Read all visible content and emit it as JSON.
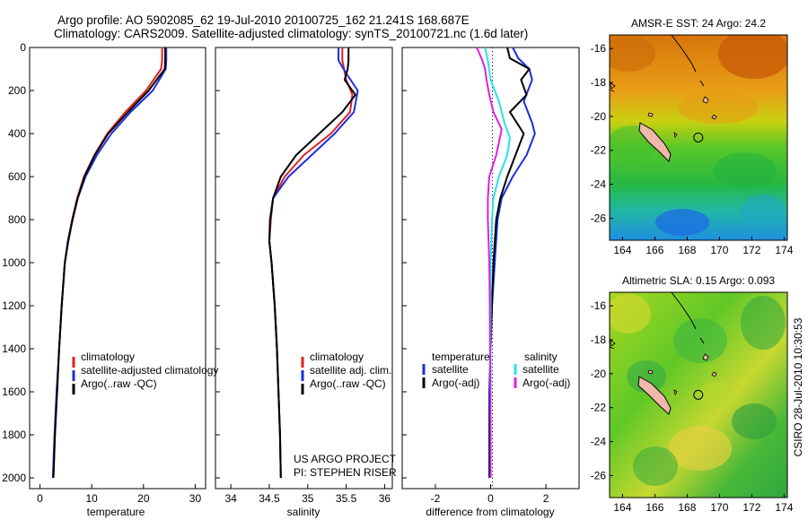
{
  "header": {
    "line1": "Argo profile: AO 5902085_62 19-Jul-2010 20100725_162 21.241S 168.687E",
    "line2": "Climatology: CARS2009. Satellite-adjusted climatology: synTS_20100721.nc (1.6d later)"
  },
  "side_label": "CSIRO 28-Jul-2010 10:30:53",
  "colors": {
    "red": "#e02020",
    "blue": "#1a2ee0",
    "black": "#000000",
    "cyan": "#28e2e8",
    "magenta": "#e020e0"
  },
  "chart_data": [
    {
      "type": "line",
      "name": "temperature-panel",
      "xlabel": "temperature",
      "xlim": [
        -2,
        32
      ],
      "ylim": [
        2050,
        0
      ],
      "xticks": [
        0,
        10,
        20,
        30
      ],
      "yticks": [
        0,
        200,
        400,
        600,
        800,
        1000,
        1200,
        1400,
        1600,
        1800,
        2000
      ],
      "series": [
        {
          "name": "climatology",
          "color": "red",
          "points": [
            [
              23.6,
              0
            ],
            [
              23.6,
              60
            ],
            [
              23.4,
              100
            ],
            [
              20.5,
              200
            ],
            [
              16.5,
              300
            ],
            [
              13,
              400
            ],
            [
              10.5,
              500
            ],
            [
              8.5,
              600
            ],
            [
              7.2,
              700
            ],
            [
              6.2,
              800
            ],
            [
              5.4,
              900
            ],
            [
              4.8,
              1000
            ],
            [
              4.2,
              1200
            ],
            [
              3.7,
              1400
            ],
            [
              3.3,
              1600
            ],
            [
              2.9,
              1800
            ],
            [
              2.6,
              2000
            ]
          ]
        },
        {
          "name": "satellite-adjusted climatology",
          "color": "blue",
          "points": [
            [
              24.4,
              0
            ],
            [
              24.4,
              60
            ],
            [
              24.3,
              100
            ],
            [
              21.8,
              200
            ],
            [
              17.5,
              300
            ],
            [
              13.8,
              400
            ],
            [
              11,
              500
            ],
            [
              8.8,
              600
            ],
            [
              7.3,
              700
            ],
            [
              6.3,
              800
            ],
            [
              5.5,
              900
            ],
            [
              4.8,
              1000
            ],
            [
              4.2,
              1200
            ],
            [
              3.7,
              1400
            ],
            [
              3.2,
              1600
            ],
            [
              2.8,
              1800
            ],
            [
              2.5,
              2000
            ]
          ]
        },
        {
          "name": "Argo(..raw -QC)",
          "color": "black",
          "points": [
            [
              24.2,
              0
            ],
            [
              24.2,
              60
            ],
            [
              24.1,
              100
            ],
            [
              21,
              200
            ],
            [
              17,
              300
            ],
            [
              13.2,
              400
            ],
            [
              10.6,
              500
            ],
            [
              8.6,
              600
            ],
            [
              7.3,
              700
            ],
            [
              6.3,
              800
            ],
            [
              5.4,
              900
            ],
            [
              4.8,
              1000
            ],
            [
              4.2,
              1200
            ],
            [
              3.7,
              1400
            ],
            [
              3.3,
              1600
            ],
            [
              2.9,
              1800
            ],
            [
              2.6,
              2000
            ]
          ]
        }
      ],
      "legend": [
        "climatology",
        "satellite-adjusted climatology",
        "Argo(..raw -QC)"
      ]
    },
    {
      "type": "line",
      "name": "salinity-panel",
      "xlabel": "salinity",
      "xlim": [
        33.8,
        36.1
      ],
      "ylim": [
        2050,
        0
      ],
      "xticks": [
        34,
        34.5,
        35,
        35.5,
        36
      ],
      "yticks": [
        0,
        200,
        400,
        600,
        800,
        1000,
        1200,
        1400,
        1600,
        1800,
        2000
      ],
      "series": [
        {
          "name": "climatology",
          "color": "red",
          "points": [
            [
              35.45,
              0
            ],
            [
              35.45,
              60
            ],
            [
              35.5,
              150
            ],
            [
              35.58,
              220
            ],
            [
              35.55,
              300
            ],
            [
              35.3,
              400
            ],
            [
              34.95,
              500
            ],
            [
              34.7,
              600
            ],
            [
              34.55,
              700
            ],
            [
              34.52,
              800
            ],
            [
              34.5,
              900
            ],
            [
              34.53,
              1000
            ],
            [
              34.57,
              1200
            ],
            [
              34.6,
              1400
            ],
            [
              34.62,
              1600
            ],
            [
              34.64,
              1800
            ],
            [
              34.65,
              2000
            ]
          ]
        },
        {
          "name": "satellite adj. clim.",
          "color": "blue",
          "points": [
            [
              35.4,
              0
            ],
            [
              35.4,
              60
            ],
            [
              35.5,
              120
            ],
            [
              35.65,
              200
            ],
            [
              35.6,
              300
            ],
            [
              35.35,
              400
            ],
            [
              35.05,
              500
            ],
            [
              34.75,
              600
            ],
            [
              34.55,
              700
            ],
            [
              34.51,
              800
            ],
            [
              34.5,
              900
            ],
            [
              34.53,
              1000
            ],
            [
              34.57,
              1200
            ],
            [
              34.6,
              1400
            ],
            [
              34.62,
              1600
            ],
            [
              34.64,
              1800
            ],
            [
              34.65,
              2000
            ]
          ]
        },
        {
          "name": "Argo(..raw -QC)",
          "color": "black",
          "points": [
            [
              35.53,
              0
            ],
            [
              35.53,
              60
            ],
            [
              35.52,
              100
            ],
            [
              35.48,
              150
            ],
            [
              35.62,
              220
            ],
            [
              35.45,
              300
            ],
            [
              35.15,
              400
            ],
            [
              34.85,
              500
            ],
            [
              34.65,
              600
            ],
            [
              34.55,
              700
            ],
            [
              34.51,
              800
            ],
            [
              34.5,
              900
            ],
            [
              34.53,
              1000
            ],
            [
              34.57,
              1200
            ],
            [
              34.6,
              1400
            ],
            [
              34.62,
              1600
            ],
            [
              34.64,
              1800
            ],
            [
              34.65,
              2000
            ]
          ]
        }
      ],
      "legend": [
        "climatology",
        "satellite adj. clim.",
        "Argo(..raw -QC)"
      ],
      "annotations": [
        "US ARGO PROJECT",
        "PI: STEPHEN RISER"
      ]
    },
    {
      "type": "line",
      "name": "difference-panel",
      "xlabel": "difference from climatology",
      "xlim": [
        -3.2,
        3.2
      ],
      "ylim": [
        2050,
        0
      ],
      "xticks": [
        -2,
        0,
        2
      ],
      "yticks": [
        0,
        200,
        400,
        600,
        800,
        1000,
        1200,
        1400,
        1600,
        1800,
        2000
      ],
      "series": [
        {
          "name": "temperature satellite",
          "color": "blue",
          "points": [
            [
              0.8,
              0
            ],
            [
              1.0,
              50
            ],
            [
              1.4,
              100
            ],
            [
              1.5,
              150
            ],
            [
              1.2,
              250
            ],
            [
              1.5,
              350
            ],
            [
              1.6,
              400
            ],
            [
              1.3,
              500
            ],
            [
              0.8,
              600
            ],
            [
              0.4,
              700
            ],
            [
              0.25,
              800
            ],
            [
              0.15,
              1000
            ],
            [
              0.05,
              1200
            ],
            [
              0,
              1400
            ],
            [
              -0.05,
              1600
            ],
            [
              -0.05,
              1800
            ],
            [
              -0.05,
              2000
            ]
          ]
        },
        {
          "name": "temperature Argo(-adj)",
          "color": "black",
          "points": [
            [
              0.6,
              0
            ],
            [
              0.7,
              50
            ],
            [
              1.4,
              100
            ],
            [
              1.1,
              150
            ],
            [
              1.3,
              220
            ],
            [
              0.7,
              300
            ],
            [
              1.2,
              400
            ],
            [
              0.9,
              500
            ],
            [
              0.6,
              600
            ],
            [
              0.35,
              700
            ],
            [
              0.2,
              800
            ],
            [
              0.1,
              1000
            ],
            [
              0.05,
              1200
            ],
            [
              0,
              1400
            ],
            [
              -0.02,
              1600
            ],
            [
              -0.03,
              1800
            ],
            [
              -0.03,
              2000
            ]
          ]
        },
        {
          "name": "salinity satellite",
          "color": "cyan",
          "points": [
            [
              -0.2,
              0
            ],
            [
              -0.1,
              60
            ],
            [
              0,
              150
            ],
            [
              0.3,
              250
            ],
            [
              0.5,
              350
            ],
            [
              0.7,
              420
            ],
            [
              0.6,
              500
            ],
            [
              0.3,
              600
            ],
            [
              0.1,
              700
            ],
            [
              0.05,
              800
            ],
            [
              0,
              1000
            ],
            [
              0,
              1200
            ],
            [
              0,
              1400
            ],
            [
              0,
              1600
            ],
            [
              0,
              1800
            ],
            [
              0,
              2000
            ]
          ]
        },
        {
          "name": "salinity Argo(-adj)",
          "color": "magenta",
          "points": [
            [
              -0.5,
              0
            ],
            [
              -0.3,
              60
            ],
            [
              -0.2,
              100
            ],
            [
              -0.15,
              150
            ],
            [
              -0.05,
              220
            ],
            [
              0.1,
              300
            ],
            [
              0.4,
              380
            ],
            [
              0.2,
              500
            ],
            [
              -0.05,
              600
            ],
            [
              -0.1,
              700
            ],
            [
              -0.1,
              800
            ],
            [
              -0.05,
              1000
            ],
            [
              -0.03,
              1200
            ],
            [
              -0.02,
              1400
            ],
            [
              -0.01,
              1600
            ],
            [
              0,
              1800
            ],
            [
              0,
              2000
            ]
          ]
        }
      ],
      "legend_headers": [
        "temperature",
        "salinity"
      ],
      "legend": [
        "satellite",
        "Argo(-adj)",
        "satellite",
        "Argo(-adj)"
      ]
    },
    {
      "type": "heatmap",
      "name": "sst-map",
      "title": "AMSR-E SST: 24 Argo: 24.2",
      "xlim": [
        163.2,
        174.2
      ],
      "ylim": [
        -27.3,
        -15.2
      ],
      "xticks": [
        164,
        166,
        168,
        170,
        172,
        174
      ],
      "yticks": [
        -16,
        -18,
        -20,
        -22,
        -24,
        -26
      ],
      "argo_position": [
        168.687,
        -21.241
      ]
    },
    {
      "type": "heatmap",
      "name": "sla-map",
      "title": "Altimetric SLA: 0.15 Argo: 0.093",
      "xlim": [
        163.2,
        174.2
      ],
      "ylim": [
        -27.3,
        -15.2
      ],
      "xticks": [
        164,
        166,
        168,
        170,
        172,
        174
      ],
      "yticks": [
        -16,
        -18,
        -20,
        -22,
        -24,
        -26
      ],
      "argo_position": [
        168.687,
        -21.241
      ]
    }
  ]
}
